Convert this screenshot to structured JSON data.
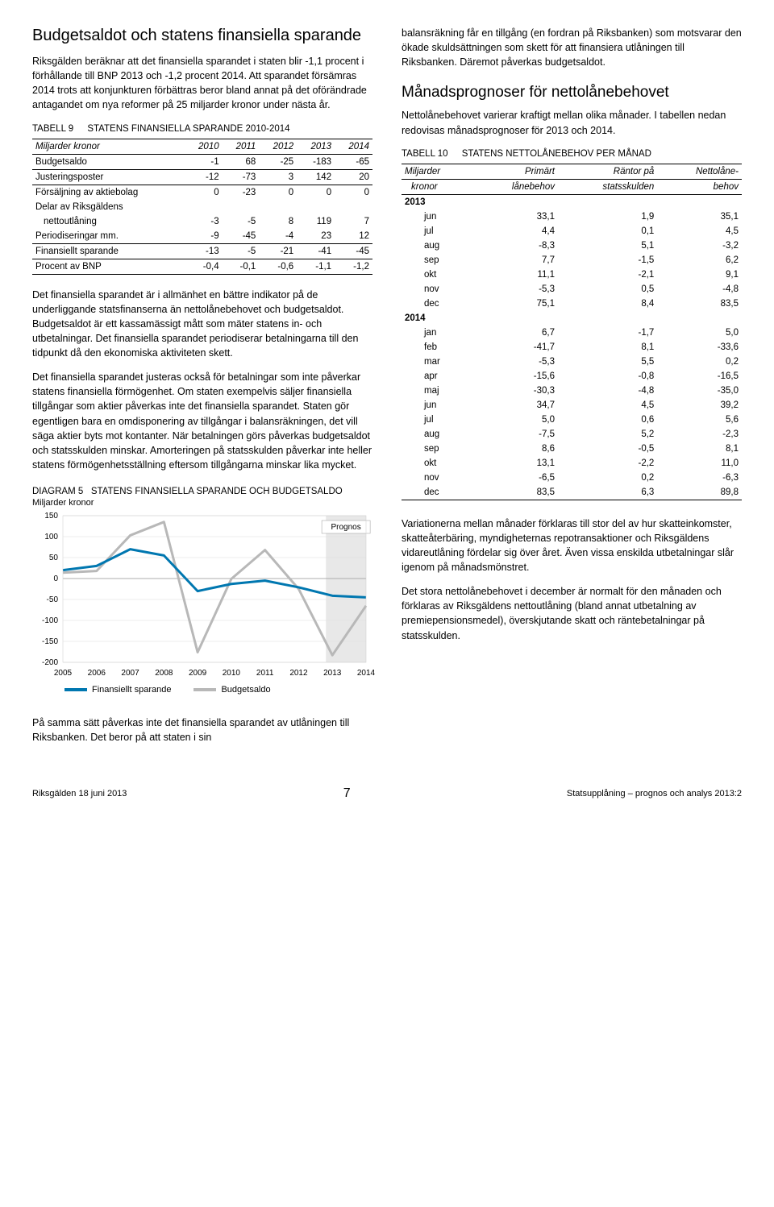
{
  "left": {
    "title": "Budgetsaldot och statens finansiella sparande",
    "p1": "Riksgälden beräknar att det finansiella sparandet i staten blir -1,1 procent i förhållande till BNP 2013 och -1,2 procent 2014. Att sparandet försämras 2014 trots att konjunkturen förbättras beror bland annat på det oförändrade antagandet om nya reformer på 25 miljarder kronor under nästa år.",
    "t9": {
      "label": "TABELL 9",
      "title": "STATENS FINANSIELLA SPARANDE 2010-2014",
      "unit": "Miljarder kronor",
      "cols": [
        "2010",
        "2011",
        "2012",
        "2013",
        "2014"
      ],
      "rows": [
        {
          "name": "Budgetsaldo",
          "v": [
            "-1",
            "68",
            "-25",
            "-183",
            "-65"
          ],
          "bot": true
        },
        {
          "name": "Justeringsposter",
          "v": [
            "-12",
            "-73",
            "3",
            "142",
            "20"
          ],
          "bot": true
        },
        {
          "name": "Försäljning av aktiebolag",
          "v": [
            "0",
            "-23",
            "0",
            "0",
            "0"
          ]
        },
        {
          "name": "Delar av Riksgäldens",
          "v": [
            "",
            "",
            "",
            "",
            ""
          ]
        },
        {
          "name": "nettoutlåning",
          "v": [
            "-3",
            "-5",
            "8",
            "119",
            "7"
          ],
          "indent": true
        },
        {
          "name": "Periodiseringar mm.",
          "v": [
            "-9",
            "-45",
            "-4",
            "23",
            "12"
          ],
          "bot": true
        },
        {
          "name": "Finansiellt sparande",
          "v": [
            "-13",
            "-5",
            "-21",
            "-41",
            "-45"
          ],
          "bot": true
        },
        {
          "name": "Procent av BNP",
          "v": [
            "-0,4",
            "-0,1",
            "-0,6",
            "-1,1",
            "-1,2"
          ],
          "bot": true
        }
      ]
    },
    "p2": "Det finansiella sparandet är i allmänhet en bättre indikator på de underliggande statsfinanserna än nettolånebehovet och budgetsaldot. Budgetsaldot är ett kassamässigt mått som mäter statens in- och utbetalningar. Det finansiella sparandet periodiserar betalningarna till den tidpunkt då den ekonomiska aktiviteten skett.",
    "p3": "Det finansiella sparandet justeras också för betalningar som inte påverkar statens finansiella förmögenhet. Om staten exempelvis säljer finansiella tillgångar som aktier påverkas inte det finansiella sparandet. Staten gör egentligen bara en omdisponering av tillgångar i balansräkningen, det vill säga aktier byts mot kontanter. När betalningen görs påverkas budgetsaldot och statsskulden minskar. Amorteringen på statsskulden påverkar inte heller statens förmögenhetsställning eftersom tillgångarna minskar lika mycket.",
    "chart": {
      "label": "DIAGRAM 5",
      "title": "STATENS FINANSIELLA SPARANDE OCH BUDGETSALDO",
      "unit": "Miljarder kronor",
      "ylim": [
        -200,
        150
      ],
      "ytick": 50,
      "years": [
        "2005",
        "2006",
        "2007",
        "2008",
        "2009",
        "2010",
        "2011",
        "2012",
        "2013",
        "2014"
      ],
      "budget_color": "#b8b8b8",
      "finans_color": "#0077b0",
      "prognos_bg": "#e8e8e8",
      "prognos_label": "Prognos",
      "budget": [
        14,
        18,
        103,
        135,
        -176,
        -1,
        68,
        -25,
        -183,
        -65
      ],
      "finans": [
        20,
        30,
        70,
        55,
        -30,
        -13,
        -5,
        -21,
        -41,
        -45
      ],
      "legend": [
        "Finansiellt sparande",
        "Budgetsaldo"
      ]
    },
    "p4": "På samma sätt påverkas inte det finansiella sparandet av utlåningen till Riksbanken. Det beror på att staten i sin"
  },
  "right": {
    "p1": "balansräkning får en tillgång (en fordran på Riksbanken) som motsvarar den ökade skuldsättningen som skett för att finansiera utlåningen till Riksbanken. Däremot påverkas budgetsaldot.",
    "subtitle": "Månadsprognoser för nettolånebehovet",
    "p2": "Nettolånebehovet varierar kraftigt mellan olika månader. I tabellen nedan redovisas månadsprognoser för 2013 och 2014.",
    "t10": {
      "label": "TABELL 10",
      "title": "STATENS NETTOLÅNEBEHOV PER MÅNAD",
      "h1a": "Miljarder",
      "h1b": "kronor",
      "h2a": "Primärt",
      "h2b": "lånebehov",
      "h3a": "Räntor på",
      "h3b": "statsskulden",
      "h4a": "Nettolåne-",
      "h4b": "behov",
      "y2013": "2013",
      "y2014": "2014",
      "rows2013": [
        {
          "m": "jun",
          "a": "33,1",
          "b": "1,9",
          "c": "35,1"
        },
        {
          "m": "jul",
          "a": "4,4",
          "b": "0,1",
          "c": "4,5"
        },
        {
          "m": "aug",
          "a": "-8,3",
          "b": "5,1",
          "c": "-3,2"
        },
        {
          "m": "sep",
          "a": "7,7",
          "b": "-1,5",
          "c": "6,2"
        },
        {
          "m": "okt",
          "a": "11,1",
          "b": "-2,1",
          "c": "9,1"
        },
        {
          "m": "nov",
          "a": "-5,3",
          "b": "0,5",
          "c": "-4,8"
        },
        {
          "m": "dec",
          "a": "75,1",
          "b": "8,4",
          "c": "83,5"
        }
      ],
      "rows2014": [
        {
          "m": "jan",
          "a": "6,7",
          "b": "-1,7",
          "c": "5,0"
        },
        {
          "m": "feb",
          "a": "-41,7",
          "b": "8,1",
          "c": "-33,6"
        },
        {
          "m": "mar",
          "a": "-5,3",
          "b": "5,5",
          "c": "0,2"
        },
        {
          "m": "apr",
          "a": "-15,6",
          "b": "-0,8",
          "c": "-16,5"
        },
        {
          "m": "maj",
          "a": "-30,3",
          "b": "-4,8",
          "c": "-35,0"
        },
        {
          "m": "jun",
          "a": "34,7",
          "b": "4,5",
          "c": "39,2"
        },
        {
          "m": "jul",
          "a": "5,0",
          "b": "0,6",
          "c": "5,6"
        },
        {
          "m": "aug",
          "a": "-7,5",
          "b": "5,2",
          "c": "-2,3"
        },
        {
          "m": "sep",
          "a": "8,6",
          "b": "-0,5",
          "c": "8,1"
        },
        {
          "m": "okt",
          "a": "13,1",
          "b": "-2,2",
          "c": "11,0"
        },
        {
          "m": "nov",
          "a": "-6,5",
          "b": "0,2",
          "c": "-6,3"
        },
        {
          "m": "dec",
          "a": "83,5",
          "b": "6,3",
          "c": "89,8"
        }
      ]
    },
    "p3": "Variationerna mellan månader förklaras till stor del av hur skatteinkomster, skatteåterbäring, myndigheternas repo­transaktioner och Riksgäldens vidareutlåning fördelar sig över året. Även vissa enskilda utbetalningar slår igenom på månadsmönstret.",
    "p4": "Det stora nettolånebehovet i december är normalt för den månaden och förklaras av Riksgäldens nettoutlåning (bland annat utbetalning av premiepensionsmedel), överskjutande skatt och räntebetalningar på statsskulden."
  },
  "footer": {
    "left": "Riksgälden 18 juni 2013",
    "page": "7",
    "right": "Statsupplåning – prognos och analys 2013:2"
  }
}
